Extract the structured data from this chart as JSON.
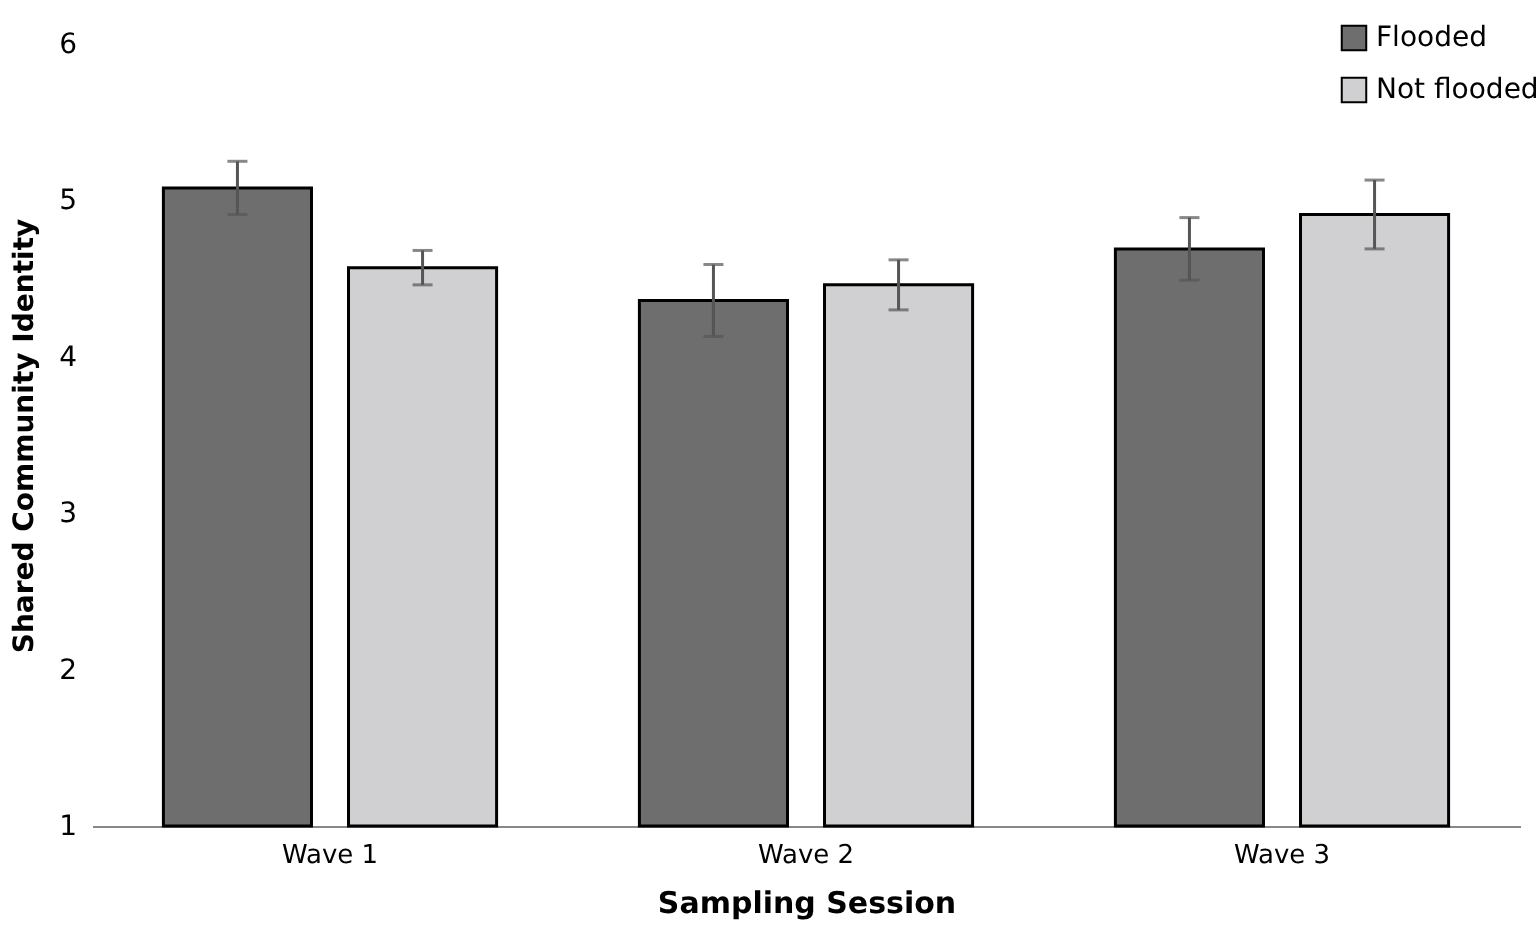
{
  "chart_data": {
    "type": "bar",
    "xlabel": "Sampling Session",
    "ylabel": "Shared Community Identity",
    "categories": [
      "Wave 1",
      "Wave 2",
      "Wave 3"
    ],
    "series": [
      {
        "name": "Flooded",
        "color": "#6e6e6e",
        "values": [
          5.08,
          4.36,
          4.69
        ],
        "errors": [
          0.17,
          0.23,
          0.2
        ]
      },
      {
        "name": "Not flooded",
        "color": "#d0cfd1",
        "values": [
          4.57,
          4.46,
          4.91
        ],
        "errors": [
          0.11,
          0.16,
          0.22
        ]
      }
    ],
    "ylim": [
      1,
      6
    ],
    "yticks": [
      1,
      2,
      3,
      4,
      5,
      6
    ],
    "grid": false,
    "legend": "top right"
  }
}
